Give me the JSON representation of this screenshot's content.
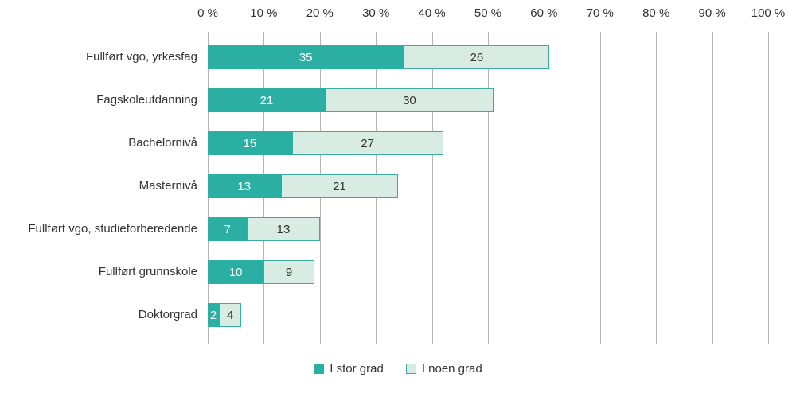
{
  "chart_data": {
    "type": "bar",
    "orientation": "horizontal",
    "stacked": true,
    "title": "",
    "xlabel": "",
    "ylabel": "",
    "xlim": [
      0,
      100
    ],
    "grid": true,
    "legend_position": "bottom",
    "x_ticks": [
      "0 %",
      "10 %",
      "20 %",
      "30 %",
      "40 %",
      "50 %",
      "60 %",
      "70 %",
      "80 %",
      "90 %",
      "100 %"
    ],
    "categories": [
      "Fullført vgo, yrkesfag",
      "Fagskoleutdanning",
      "Bachelornivå",
      "Masternivå",
      "Fullført vgo, studieforberedende",
      "Fullført grunnskole",
      "Doktorgrad"
    ],
    "series": [
      {
        "name": "I stor grad",
        "color": "#2bafa2",
        "border_color": "#2bafa2",
        "label_color": "#ffffff",
        "values": [
          35,
          21,
          15,
          13,
          7,
          10,
          2
        ]
      },
      {
        "name": "I noen grad",
        "color": "#d9ece4",
        "border_color": "#3aab9c",
        "label_color": "#333333",
        "values": [
          26,
          30,
          27,
          21,
          13,
          9,
          4
        ]
      }
    ],
    "gridline_color": "#b3b3b3"
  }
}
